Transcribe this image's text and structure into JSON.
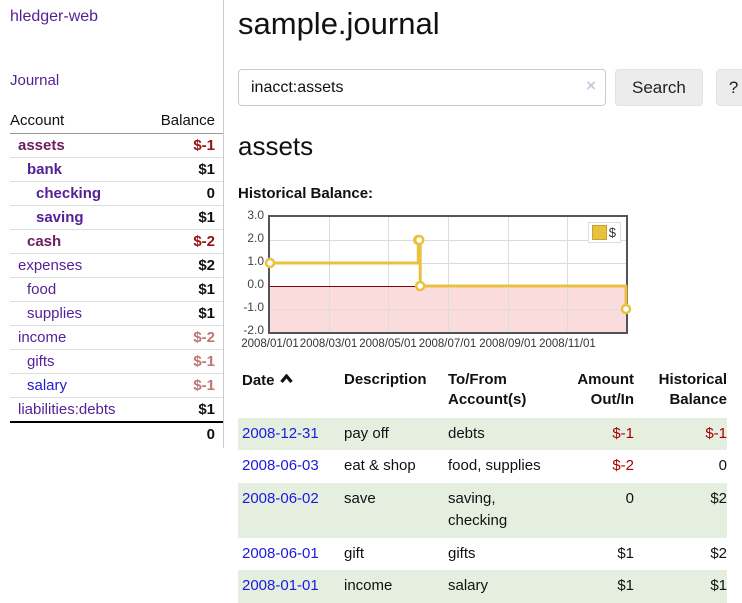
{
  "app": {
    "brand": "hledger-web"
  },
  "sidebar": {
    "nav_journal": "Journal",
    "header": {
      "account": "Account",
      "balance": "Balance"
    },
    "accounts": [
      {
        "name": "assets",
        "level": 1,
        "balance": "$-1",
        "bold": true,
        "name_color": "maroon",
        "balance_color": "neg-strong"
      },
      {
        "name": "bank",
        "level": 2,
        "balance": "$1",
        "bold": true,
        "name_color": "purple",
        "balance_color": ""
      },
      {
        "name": "checking",
        "level": 3,
        "balance": "0",
        "bold": true,
        "name_color": "purple",
        "balance_color": ""
      },
      {
        "name": "saving",
        "level": 3,
        "balance": "$1",
        "bold": true,
        "name_color": "purple",
        "balance_color": ""
      },
      {
        "name": "cash",
        "level": 2,
        "balance": "$-2",
        "bold": true,
        "name_color": "maroon",
        "balance_color": "neg-strong"
      },
      {
        "name": "expenses",
        "level": 1,
        "balance": "$2",
        "bold": false,
        "name_color": "purple",
        "balance_color": ""
      },
      {
        "name": "food",
        "level": 2,
        "balance": "$1",
        "bold": false,
        "name_color": "purple",
        "balance_color": ""
      },
      {
        "name": "supplies",
        "level": 2,
        "balance": "$1",
        "bold": false,
        "name_color": "purple",
        "balance_color": ""
      },
      {
        "name": "income",
        "level": 1,
        "balance": "$-2",
        "bold": false,
        "name_color": "purple",
        "balance_color": "neg-muted"
      },
      {
        "name": "gifts",
        "level": 2,
        "balance": "$-1",
        "bold": false,
        "name_color": "purple",
        "balance_color": "neg-muted"
      },
      {
        "name": "salary",
        "level": 2,
        "balance": "$-1",
        "bold": false,
        "name_color": "blue",
        "balance_color": "neg-muted"
      },
      {
        "name": "liabilities:debts",
        "level": 1,
        "balance": "$1",
        "bold": false,
        "name_color": "purple",
        "balance_color": ""
      }
    ],
    "total": "0"
  },
  "main": {
    "title": "sample.journal",
    "search": {
      "value": "inacct:assets",
      "clear_icon": "×",
      "search_label": "Search",
      "help_label": "?"
    },
    "account_heading": "assets",
    "chart_heading": "Historical Balance:"
  },
  "chart_data": {
    "type": "line",
    "title": "Historical Balance",
    "step": "after",
    "legend": [
      "$"
    ],
    "legend_position": "top-right",
    "series": [
      {
        "name": "$",
        "color": "#e8c23f",
        "points": [
          {
            "date": "2008-01-01",
            "value": 1
          },
          {
            "date": "2008-06-01",
            "value": 2
          },
          {
            "date": "2008-06-02",
            "value": 2
          },
          {
            "date": "2008-06-03",
            "value": 0
          },
          {
            "date": "2008-12-31",
            "value": -1
          }
        ]
      }
    ],
    "x_range": [
      "2008-01-01",
      "2008-12-31"
    ],
    "x_ticks": [
      "2008/01/01",
      "2008/03/01",
      "2008/05/01",
      "2008/07/01",
      "2008/09/01",
      "2008/11/01"
    ],
    "y_ticks": [
      "3.0",
      "2.0",
      "1.0",
      "0.0",
      "-1.0",
      "-2.0"
    ],
    "ylim": [
      -2,
      3
    ],
    "grid": true,
    "zero_line_color": "#8b0000",
    "negative_region_color": "#fbdcdc"
  },
  "register": {
    "headers": {
      "date": "Date",
      "description": "Description",
      "accounts": "To/From Account(s)",
      "amount": "Amount Out/In",
      "balance": "Historical Balance"
    },
    "rows": [
      {
        "date": "2008-12-31",
        "description": "pay off",
        "accounts": "debts",
        "amount": "$-1",
        "amount_neg": true,
        "balance": "$-1",
        "balance_neg": true,
        "shade": true
      },
      {
        "date": "2008-06-03",
        "description": "eat & shop",
        "accounts": "food, supplies",
        "amount": "$-2",
        "amount_neg": true,
        "balance": "0",
        "balance_neg": false,
        "shade": false
      },
      {
        "date": "2008-06-02",
        "description": "save",
        "accounts": "saving, checking",
        "amount": "0",
        "amount_neg": false,
        "balance": "$2",
        "balance_neg": false,
        "shade": true
      },
      {
        "date": "2008-06-01",
        "description": "gift",
        "accounts": "gifts",
        "amount": "$1",
        "amount_neg": false,
        "balance": "$2",
        "balance_neg": false,
        "shade": false
      },
      {
        "date": "2008-01-01",
        "description": "income",
        "accounts": "salary",
        "amount": "$1",
        "amount_neg": false,
        "balance": "$1",
        "balance_neg": false,
        "shade": true
      }
    ]
  },
  "colors": {
    "link_purple": "#551f96",
    "link_blue": "#2020cc",
    "date_link_blue": "#1a1ae0",
    "negative_strong": "#991111",
    "negative_muted": "#c07575",
    "table_negative": "#a40000",
    "row_green": "#e5efdf",
    "chart_gold": "#e8c23f",
    "chart_negative_fill": "#fbdcdc"
  }
}
